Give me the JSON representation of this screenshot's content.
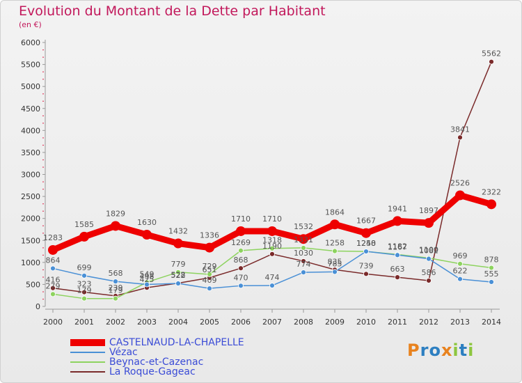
{
  "title": "Evolution du Montant de la Dette par Habitant",
  "unit": "(en €)",
  "logo": {
    "letters": [
      "P",
      "r",
      "o",
      "x",
      "i",
      "t",
      "i"
    ],
    "colors": [
      "#e8821e",
      "#2d7fc1",
      "#2d7fc1",
      "#e8821e",
      "#8dc63f",
      "#2d7fc1",
      "#8dc63f"
    ]
  },
  "chart_data": {
    "type": "line",
    "x": [
      "2000",
      "2001",
      "2002",
      "2003",
      "2004",
      "2005",
      "2006",
      "2007",
      "2008",
      "2009",
      "2010",
      "2011",
      "2012",
      "2013",
      "2014"
    ],
    "ylim": [
      0,
      6000
    ],
    "yticks": [
      0,
      500,
      1000,
      1500,
      2000,
      2500,
      3000,
      3500,
      4000,
      4500,
      5000,
      5500,
      6000
    ],
    "grid": false,
    "legend_position": "bottom-left",
    "series": [
      {
        "name": "CASTELNAUD-LA-CHAPELLE",
        "color": "#ee0000",
        "values": [
          1283,
          1585,
          1829,
          1630,
          1432,
          1336,
          1710,
          1710,
          1532,
          1864,
          1667,
          1941,
          1897,
          2526,
          2322
        ],
        "labels": [
          "1283",
          "1585",
          "1829",
          "1630",
          "1432",
          "1336",
          "1710",
          "1710",
          "1532",
          "1864",
          "1667",
          "1941",
          "1897",
          "2526",
          "2322"
        ]
      },
      {
        "name": "Vézac",
        "color": "#4a90d6",
        "values": [
          864,
          699,
          568,
          498,
          522,
          409,
          470,
          474,
          774,
          785,
          1250,
          1167,
          1082,
          622,
          555
        ],
        "labels": [
          "864",
          "699",
          "568",
          "498",
          "522",
          "409",
          "470",
          "474",
          "774",
          "785",
          "1250",
          "1167",
          "1082",
          "622",
          "555"
        ]
      },
      {
        "name": "Beynac-et-Cazenac",
        "color": "#8dd35f",
        "values": [
          279,
          179,
          179,
          549,
          779,
          729,
          1269,
          1318,
          1331,
          1258,
          1248,
          1182,
          1100,
          969,
          878
        ],
        "labels": [
          "279",
          "179",
          "179",
          "549",
          "779",
          "729",
          "1269",
          "1318",
          "1331",
          "1258",
          "1248",
          "1182",
          "1100",
          "969",
          "878"
        ]
      },
      {
        "name": "La Roque-Gageac",
        "color": "#7a2a2a",
        "values": [
          416,
          323,
          239,
          425,
          528,
          651,
          868,
          1190,
          1030,
          835,
          739,
          663,
          586,
          3841,
          5562
        ],
        "labels": [
          "416",
          "323",
          "239",
          "425",
          "528",
          "651",
          "868",
          "1190",
          "1030",
          "835",
          "739",
          "663",
          "586",
          "3841",
          "5562"
        ]
      }
    ]
  }
}
